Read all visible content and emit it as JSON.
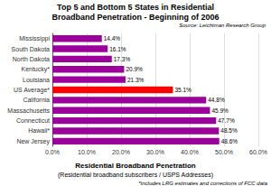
{
  "chart_data": {
    "type": "bar",
    "orientation": "horizontal",
    "title": "Top 5 and Bottom 5 States in Residential\nBroadband Penetration - Beginning of 2006",
    "xlabel": "Residential Broadband Penetration",
    "annotations": [
      "Source: Leichtman Research Group",
      "(Residential broadband subscribers / USPS Addresses)",
      "*Includes LRG estimates and corrections of FCC data"
    ],
    "categories": [
      "Mississippi",
      "South Dakota",
      "North Dakota",
      "Kentucky*",
      "Louisiana",
      "US Average*",
      "California",
      "Massachusetts",
      "Connecticut",
      "Hawaii*",
      "New Jersey"
    ],
    "values": [
      14.4,
      16.1,
      17.3,
      20.9,
      21.3,
      35.1,
      44.8,
      45.9,
      47.7,
      48.5,
      48.6
    ],
    "value_labels": [
      "14.4%",
      "16.1%",
      "17.3%",
      "20.9%",
      "21.3%",
      "35.1%",
      "44.8%",
      "45.9%",
      "47.7%",
      "48.5%",
      "48.6%"
    ],
    "data_labels": true,
    "colors": [
      "#9B009B",
      "#9B009B",
      "#9B009B",
      "#9B009B",
      "#9B009B",
      "#FF0000",
      "#9B009B",
      "#9B009B",
      "#9B009B",
      "#9B009B",
      "#9B009B"
    ],
    "xlim": [
      0,
      60
    ],
    "xticks": [
      {
        "value": 0,
        "label": "0.0%"
      },
      {
        "value": 10,
        "label": "10.0%"
      },
      {
        "value": 20,
        "label": "20.0%"
      },
      {
        "value": 30,
        "label": "30.0%"
      },
      {
        "value": 40,
        "label": "40.0%"
      },
      {
        "value": 50,
        "label": "50.0%"
      },
      {
        "value": 60,
        "label": "60.0%"
      }
    ],
    "grid": true
  }
}
